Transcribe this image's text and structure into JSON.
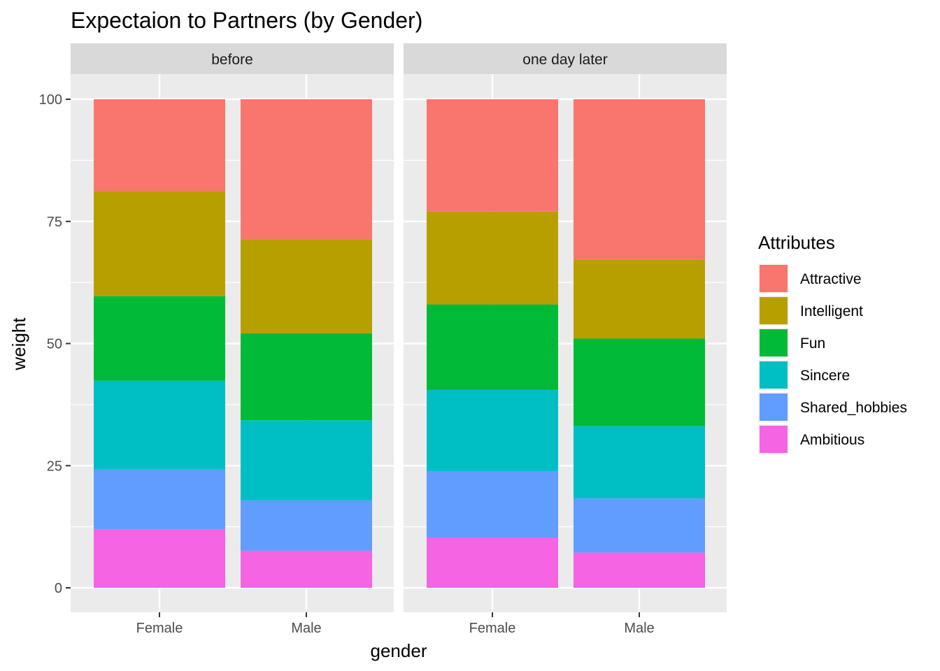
{
  "chart_data": {
    "type": "bar",
    "stacked": true,
    "title": "Expectaion to Partners (by Gender)",
    "xlabel": "gender",
    "ylabel": "weight",
    "ylim": [
      0,
      100
    ],
    "yticks": [
      0,
      25,
      50,
      75,
      100
    ],
    "categories": [
      "Female",
      "Male"
    ],
    "facets": [
      "before",
      "one day later"
    ],
    "legend": {
      "title": "Attributes",
      "placement": "right"
    },
    "grid": true,
    "series": [
      {
        "name": "Attractive",
        "color": "#F8766D",
        "values": {
          "before": [
            18.8,
            28.7
          ],
          "one day later": [
            23.0,
            32.8
          ]
        }
      },
      {
        "name": "Intelligent",
        "color": "#B79F00",
        "values": {
          "before": [
            21.5,
            19.2
          ],
          "one day later": [
            19.0,
            16.2
          ]
        }
      },
      {
        "name": "Fun",
        "color": "#00BA38",
        "values": {
          "before": [
            17.3,
            17.8
          ],
          "one day later": [
            17.5,
            17.9
          ]
        }
      },
      {
        "name": "Sincere",
        "color": "#00BFC4",
        "values": {
          "before": [
            18.2,
            16.4
          ],
          "one day later": [
            16.6,
            14.8
          ]
        }
      },
      {
        "name": "Shared_hobbies",
        "color": "#619CFF",
        "values": {
          "before": [
            12.2,
            10.3
          ],
          "one day later": [
            13.6,
            11.1
          ]
        }
      },
      {
        "name": "Ambitious",
        "color": "#F564E3",
        "values": {
          "before": [
            12.0,
            7.6
          ],
          "one day later": [
            10.3,
            7.2
          ]
        }
      }
    ]
  }
}
